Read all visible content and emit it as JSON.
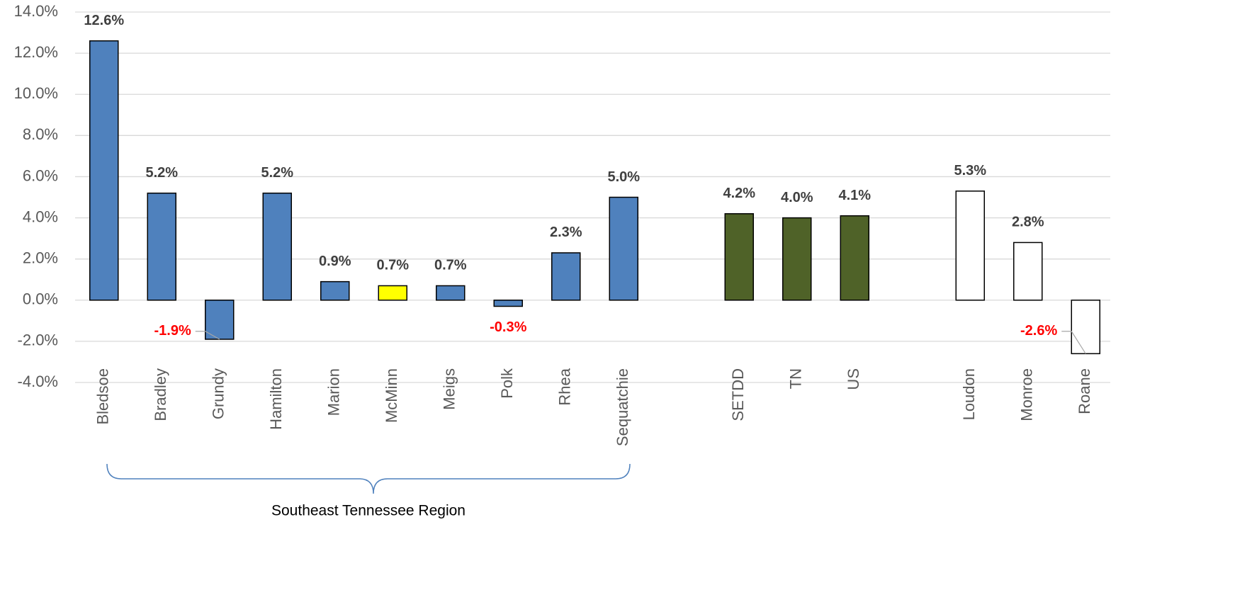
{
  "chart_data": {
    "type": "bar",
    "categories": [
      "Bledsoe",
      "Bradley",
      "Grundy",
      "Hamilton",
      "Marion",
      "McMinn",
      "Meigs",
      "Polk",
      "Rhea",
      "Sequatchie",
      null,
      "SETDD",
      "TN",
      "US",
      null,
      "Loudon",
      "Monroe",
      "Roane"
    ],
    "values": [
      12.6,
      5.2,
      -1.9,
      5.2,
      0.9,
      0.7,
      0.7,
      -0.3,
      2.3,
      5.0,
      null,
      4.2,
      4.0,
      4.1,
      null,
      5.3,
      2.8,
      -2.6
    ],
    "value_labels": [
      "12.6%",
      "5.2%",
      "-1.9%",
      "5.2%",
      "0.9%",
      "0.7%",
      "0.7%",
      "-0.3%",
      "2.3%",
      "5.0%",
      null,
      "4.2%",
      "4.0%",
      "4.1%",
      null,
      "5.3%",
      "2.8%",
      "-2.6%"
    ],
    "colors": [
      "#4f81bd",
      "#4f81bd",
      "#4f81bd",
      "#4f81bd",
      "#4f81bd",
      "#ffff00",
      "#4f81bd",
      "#4f81bd",
      "#4f81bd",
      "#4f81bd",
      null,
      "#4f6228",
      "#4f6228",
      "#4f6228",
      null,
      "#ffffff",
      "#ffffff",
      "#ffffff"
    ],
    "label_color": "#404040",
    "negative_label_color": "#ff0000",
    "ylim": [
      -4,
      14
    ],
    "yticks": [
      {
        "value": -4,
        "label": "-4.0%"
      },
      {
        "value": -2,
        "label": "-2.0%"
      },
      {
        "value": 0,
        "label": "0.0%"
      },
      {
        "value": 2,
        "label": "2.0%"
      },
      {
        "value": 4,
        "label": "4.0%"
      },
      {
        "value": 6,
        "label": "6.0%"
      },
      {
        "value": 8,
        "label": "8.0%"
      },
      {
        "value": 10,
        "label": "10.0%"
      },
      {
        "value": 12,
        "label": "12.0%"
      },
      {
        "value": 14,
        "label": "14.0%"
      }
    ],
    "grid": true,
    "annotation": "Southeast Tennessee Region"
  }
}
